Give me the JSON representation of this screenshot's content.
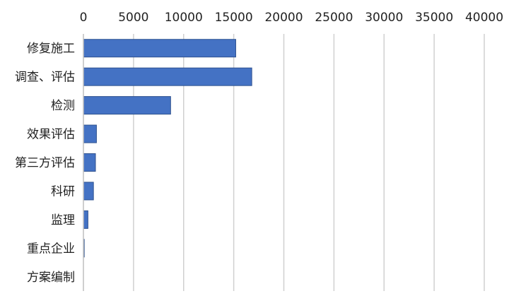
{
  "chart_data": {
    "type": "bar",
    "orientation": "horizontal",
    "categories": [
      "修复施工",
      "调查、评估",
      "检测",
      "效果评估",
      "第三方评估",
      "科研",
      "监理",
      "重点企业",
      "方案编制"
    ],
    "values": [
      15200,
      16800,
      8700,
      1300,
      1200,
      1000,
      450,
      80,
      0
    ],
    "xlim": [
      0,
      40000
    ],
    "xticks": [
      0,
      5000,
      10000,
      15000,
      20000,
      25000,
      30000,
      35000,
      40000
    ],
    "x_axis_position": "top",
    "grid": true,
    "legend": "none",
    "bar_color": "#4472c4",
    "grid_color": "#d0d0d0"
  }
}
